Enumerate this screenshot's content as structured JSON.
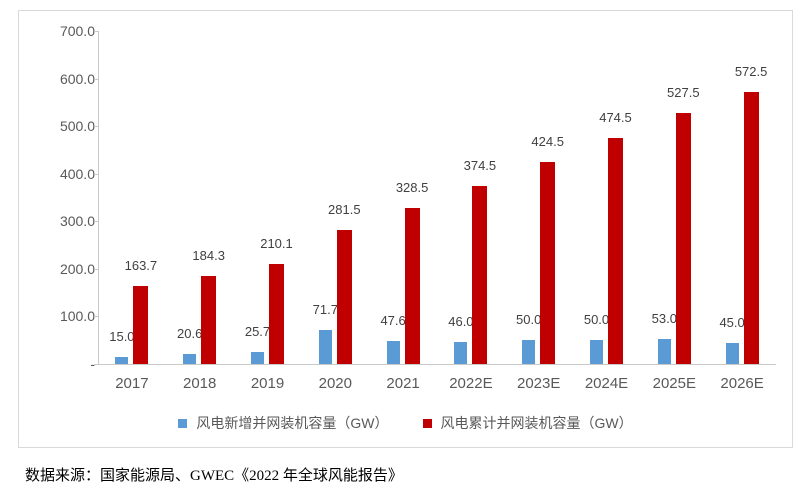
{
  "chart_data": {
    "type": "bar",
    "title": "",
    "categories": [
      "2017",
      "2018",
      "2019",
      "2020",
      "2021",
      "2022E",
      "2023E",
      "2024E",
      "2025E",
      "2026E"
    ],
    "series": [
      {
        "name": "风电新增并网装机容量（GW）",
        "color": "#5b9bd5",
        "values": [
          15.0,
          20.6,
          25.7,
          71.7,
          47.6,
          46.0,
          50.0,
          50.0,
          53.0,
          45.0
        ]
      },
      {
        "name": "风电累计并网装机容量（GW）",
        "color": "#c00000",
        "values": [
          163.7,
          184.3,
          210.1,
          281.5,
          328.5,
          374.5,
          424.5,
          474.5,
          527.5,
          572.5
        ]
      }
    ],
    "y_axis": {
      "min": 0,
      "max": 700,
      "tick_interval": 100,
      "tick_values": [
        700,
        600,
        500,
        400,
        300,
        200,
        100,
        0
      ],
      "tick_labels": [
        "700.0",
        "600.0",
        "500.0",
        "400.0",
        "300.0",
        "200.0",
        "100.0",
        "-"
      ]
    },
    "value_decimals": 1,
    "grid": false,
    "legend_position": "bottom"
  },
  "colors": {
    "new_capacity_bar": "#5b9bd5",
    "cumulative_bar": "#c00000",
    "axis_line": "#c9c9c9",
    "frame_border": "#d9d9d9",
    "data_label_text": "#404040",
    "axis_text": "#595959"
  },
  "source_text": "数据来源：国家能源局、GWEC《2022 年全球风能报告》"
}
